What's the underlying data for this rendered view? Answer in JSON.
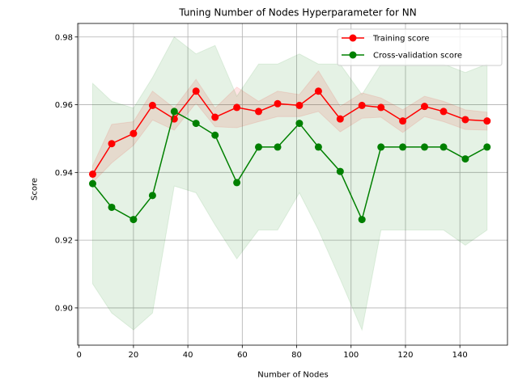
{
  "chart_data": {
    "type": "line",
    "title": "Tuning Number of Nodes Hyperparameter for NN",
    "xlabel": "Number of Nodes",
    "ylabel": "Score",
    "xlim": [
      -0.5,
      157.5
    ],
    "ylim": [
      0.889,
      0.984
    ],
    "xticks": [
      0,
      20,
      40,
      60,
      80,
      100,
      120,
      140
    ],
    "yticks": [
      0.9,
      0.92,
      0.94,
      0.96,
      0.98
    ],
    "ytick_labels": [
      "0.90",
      "0.92",
      "0.94",
      "0.96",
      "0.98"
    ],
    "grid": true,
    "legend_position": "top-right",
    "x": [
      5,
      12,
      20,
      27,
      35,
      43,
      50,
      58,
      66,
      73,
      81,
      88,
      96,
      104,
      111,
      119,
      127,
      134,
      142,
      150
    ],
    "series": [
      {
        "name": "Training score",
        "color": "#ff0000",
        "band_color": "#ff0000",
        "values": [
          0.9395,
          0.9485,
          0.9515,
          0.9598,
          0.9558,
          0.964,
          0.9563,
          0.9592,
          0.958,
          0.9603,
          0.9598,
          0.964,
          0.9558,
          0.9598,
          0.9592,
          0.9552,
          0.9595,
          0.958,
          0.9556,
          0.9552
        ],
        "band_upper": [
          0.942,
          0.9542,
          0.955,
          0.964,
          0.959,
          0.9675,
          0.959,
          0.9652,
          0.961,
          0.964,
          0.963,
          0.97,
          0.9595,
          0.9635,
          0.962,
          0.9585,
          0.9625,
          0.961,
          0.9585,
          0.9578
        ],
        "band_lower": [
          0.937,
          0.9428,
          0.948,
          0.9555,
          0.9525,
          0.9605,
          0.9535,
          0.9532,
          0.955,
          0.9565,
          0.9565,
          0.958,
          0.952,
          0.956,
          0.9563,
          0.9518,
          0.9565,
          0.955,
          0.9527,
          0.9525
        ]
      },
      {
        "name": "Cross-validation score",
        "color": "#008000",
        "band_color": "#008000",
        "values": [
          0.9367,
          0.9297,
          0.9261,
          0.9332,
          0.958,
          0.9545,
          0.951,
          0.937,
          0.9475,
          0.9475,
          0.9545,
          0.9475,
          0.9403,
          0.9261,
          0.9475,
          0.9475,
          0.9475,
          0.9475,
          0.944,
          0.9475
        ],
        "band_upper": [
          0.9663,
          0.961,
          0.959,
          0.968,
          0.98,
          0.975,
          0.9775,
          0.9625,
          0.972,
          0.972,
          0.975,
          0.972,
          0.972,
          0.963,
          0.972,
          0.972,
          0.972,
          0.972,
          0.9695,
          0.972
        ],
        "band_lower": [
          0.9071,
          0.8985,
          0.8935,
          0.8985,
          0.936,
          0.934,
          0.9245,
          0.9145,
          0.923,
          0.923,
          0.934,
          0.923,
          0.9085,
          0.8935,
          0.923,
          0.923,
          0.923,
          0.923,
          0.9185,
          0.923
        ]
      }
    ]
  }
}
